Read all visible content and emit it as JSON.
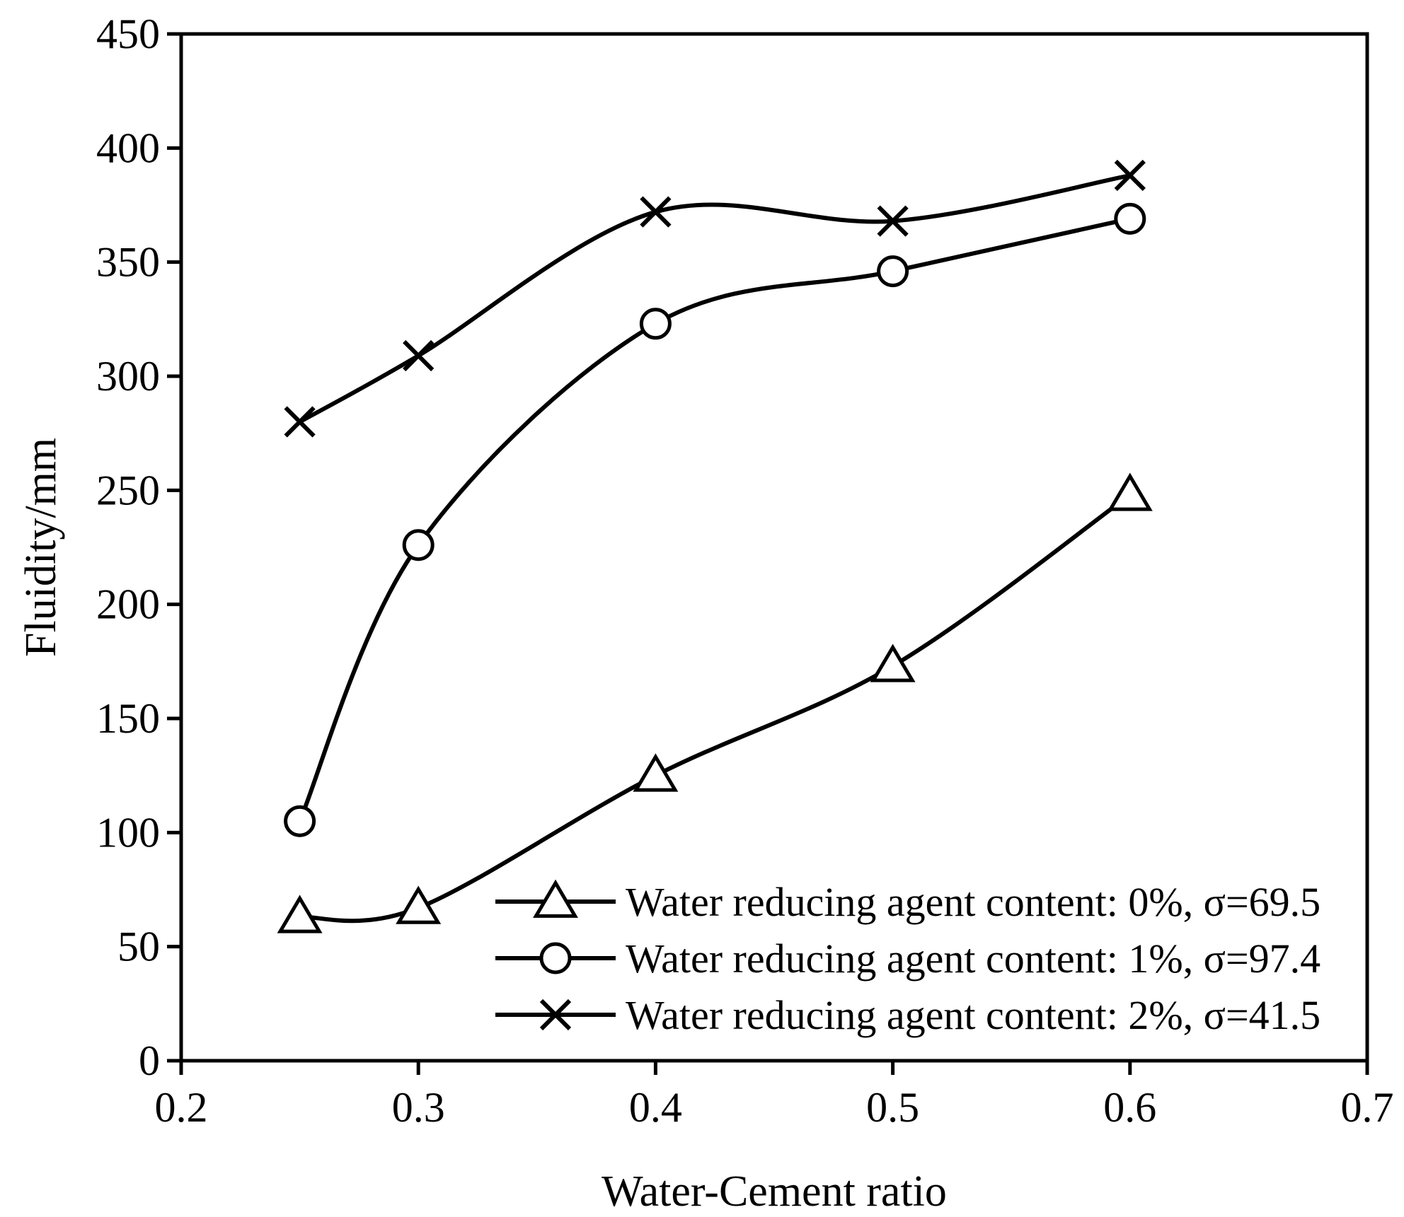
{
  "chart_data": {
    "type": "line",
    "title": "",
    "xlabel": "Water-Cement ratio",
    "ylabel": "Fluidity/mm",
    "xlim": [
      0.2,
      0.7
    ],
    "ylim": [
      0,
      450
    ],
    "xticks": [
      "0.2",
      "0.3",
      "0.4",
      "0.5",
      "0.6",
      "0.7"
    ],
    "yticks": [
      "0",
      "50",
      "100",
      "150",
      "200",
      "250",
      "300",
      "350",
      "400",
      "450"
    ],
    "x": [
      0.25,
      0.3,
      0.4,
      0.5,
      0.6
    ],
    "legend_position": "bottom-right",
    "grid": false,
    "smooth": true,
    "series": [
      {
        "name": "Water reducing agent content: 0%, σ=69.5",
        "marker": "triangle",
        "values": [
          63,
          67,
          125,
          173,
          248
        ]
      },
      {
        "name": "Water reducing agent content: 1%, σ=97.4",
        "marker": "circle",
        "values": [
          105,
          226,
          323,
          346,
          369
        ]
      },
      {
        "name": "Water reducing agent content: 2%, σ=41.5",
        "marker": "cross",
        "values": [
          280,
          309,
          372,
          368,
          388
        ]
      }
    ],
    "colors": {
      "line": "#000000",
      "background": "#ffffff"
    }
  }
}
